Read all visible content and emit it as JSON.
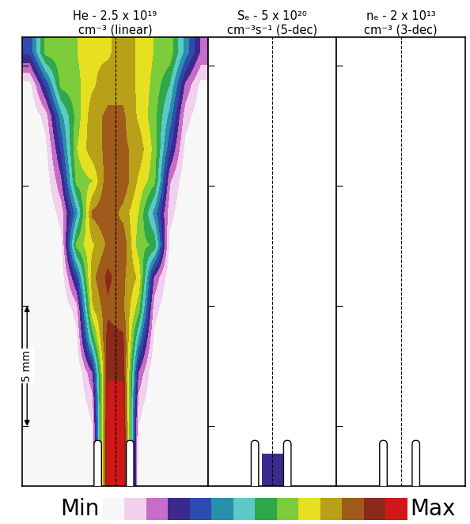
{
  "chart_data": [
    {
      "type": "heatmap",
      "title": "He - 2.5 x 10¹⁹\ncm⁻³ (linear)",
      "color_range": [
        0,
        2.5e+19
      ],
      "xlim": [
        -3.75,
        3.75
      ],
      "ylim": [
        0,
        18.7
      ],
      "xticks": [],
      "yticks": [
        2.5,
        7.5,
        12.5,
        17.5
      ],
      "tick_labels": false,
      "cells": [
        [
          0,
          0,
          0,
          0,
          5e+17,
          2.5e+19,
          2.5e+19,
          5e+17,
          0,
          0,
          0,
          0
        ],
        [
          0,
          0,
          0,
          0,
          1.2e+18,
          2.5e+19,
          2.5e+19,
          1.2e+18,
          0,
          0,
          0,
          0
        ],
        [
          0,
          0,
          0,
          0,
          2.5e+18,
          2.4e+19,
          2.4e+19,
          2.5e+18,
          0,
          0,
          0,
          0
        ],
        [
          0,
          0,
          0,
          0,
          5e+18,
          2.3e+19,
          2.3e+19,
          5e+18,
          0,
          0,
          0,
          0
        ],
        [
          0,
          0,
          0,
          1.2e+18,
          1.25e+19,
          2.25e+19,
          2.2e+19,
          1e+19,
          1.2e+18,
          0,
          0,
          0
        ],
        [
          0,
          0,
          0,
          2.5e+18,
          1.75e+19,
          2.1e+19,
          2e+19,
          1.5e+19,
          2.5e+18,
          0,
          0,
          0
        ],
        [
          0,
          0,
          5e+17,
          7.5e+18,
          1.9e+19,
          2.2e+19,
          2e+19,
          1.75e+19,
          5e+18,
          5e+17,
          0,
          0
        ],
        [
          0,
          0,
          1.2e+18,
          1.5e+19,
          1.75e+19,
          2e+19,
          2.1e+19,
          1.5e+19,
          1.4e+19,
          1.2e+18,
          0,
          0
        ],
        [
          0,
          0,
          2.5e+18,
          1e+19,
          2e+19,
          2.1e+19,
          1.9e+19,
          1.6e+19,
          1e+19,
          2.5e+18,
          0,
          0
        ],
        [
          0,
          5e+17,
          5e+18,
          1.5e+19,
          1.6e+19,
          2.1e+19,
          2.1e+19,
          1.75e+19,
          1.5e+19,
          3.8e+18,
          5e+17,
          0
        ],
        [
          0,
          1.2e+18,
          7.5e+18,
          1.6e+19,
          1.9e+19,
          2e+19,
          2e+19,
          1.9e+19,
          1.55e+19,
          7.5e+18,
          1.2e+18,
          0
        ],
        [
          0,
          2.5e+18,
          1e+19,
          1.5e+19,
          1.9e+19,
          2e+19,
          2e+19,
          1.75e+19,
          1.5e+19,
          1e+19,
          2.5e+18,
          5e+17
        ],
        [
          1.2e+18,
          7.5e+18,
          1.5e+19,
          1.55e+19,
          1.75e+19,
          1.9e+19,
          1.9e+19,
          1.75e+19,
          1.55e+19,
          1.25e+19,
          5e+18,
          1.2e+18
        ],
        [
          7.5e+18,
          1.5e+19,
          1.55e+19,
          1.6e+19,
          1.75e+19,
          1.75e+19,
          1.9e+19,
          1.75e+19,
          1.6e+19,
          1.55e+19,
          1e+19,
          5e+18
        ]
      ]
    },
    {
      "type": "heatmap",
      "title": "Sₑ - 5 x 10²⁰\ncm⁻³s⁻¹ (5-dec)",
      "log": true,
      "color_range": [
        5000000000000000.0,
        5e+20
      ],
      "xlim": [
        -2.57,
        2.57
      ],
      "ylim": [
        0,
        18.7
      ],
      "xticks": [],
      "yticks": [
        2.5,
        7.5,
        12.5,
        17.5
      ],
      "tick_labels": false,
      "cells": [
        [
          0,
          0,
          0,
          0,
          0,
          1e+17,
          1e+17,
          0,
          0,
          0,
          0,
          0
        ],
        [
          0,
          0,
          0,
          0,
          0,
          0,
          0,
          0,
          0,
          0,
          0,
          0
        ],
        [
          0,
          0,
          0,
          0,
          0,
          0,
          0,
          0,
          0,
          0,
          0,
          0
        ],
        [
          0,
          0,
          0,
          0,
          0,
          0,
          0,
          0,
          0,
          0,
          0,
          0
        ],
        [
          0,
          0,
          0,
          0,
          0,
          0,
          0,
          0,
          0,
          0,
          0,
          0
        ],
        [
          0,
          0,
          0,
          0,
          0,
          0,
          0,
          0,
          0,
          0,
          0,
          0
        ],
        [
          0,
          0,
          0,
          0,
          0,
          0,
          0,
          0,
          0,
          0,
          0,
          0
        ],
        [
          0,
          0,
          0,
          0,
          0,
          0,
          0,
          0,
          0,
          0,
          0,
          0
        ],
        [
          0,
          0,
          0,
          0,
          0,
          0,
          0,
          0,
          0,
          0,
          0,
          0
        ],
        [
          0,
          0,
          0,
          0,
          0,
          0,
          0,
          0,
          0,
          0,
          0,
          0
        ],
        [
          0,
          0,
          0,
          0,
          0,
          0,
          0,
          0,
          0,
          0,
          0,
          0
        ],
        [
          0,
          0,
          0,
          0,
          0,
          0,
          0,
          0,
          0,
          0,
          0,
          0
        ],
        [
          0,
          0,
          0,
          0,
          0,
          0,
          0,
          0,
          0,
          0,
          0,
          0
        ],
        [
          0,
          0,
          0,
          0,
          0,
          0,
          0,
          0,
          0,
          0,
          0,
          0
        ]
      ]
    },
    {
      "type": "heatmap",
      "title": "nₑ - 2 x 10¹³\ncm⁻³ (3-dec)",
      "log": true,
      "color_range": [
        20000000000.0,
        20000000000000.0
      ],
      "xlim": [
        -2.57,
        2.57
      ],
      "ylim": [
        0,
        18.7
      ],
      "xticks": [],
      "yticks": [
        2.5,
        7.5,
        12.5,
        17.5
      ],
      "tick_labels": false,
      "cells": [
        [
          0,
          0,
          0,
          0,
          0,
          0,
          0,
          0,
          0,
          0,
          0,
          0
        ],
        [
          0,
          0,
          0,
          0,
          0,
          0,
          0,
          0,
          0,
          0,
          0,
          0
        ],
        [
          0,
          0,
          0,
          0,
          0,
          0,
          0,
          0,
          0,
          0,
          0,
          0
        ],
        [
          0,
          0,
          0,
          0,
          0,
          0,
          0,
          0,
          0,
          0,
          0,
          0
        ],
        [
          0,
          0,
          0,
          0,
          0,
          0,
          0,
          0,
          0,
          0,
          0,
          0
        ],
        [
          0,
          0,
          0,
          0,
          0,
          0,
          0,
          0,
          0,
          0,
          0,
          0
        ],
        [
          0,
          0,
          0,
          0,
          0,
          0,
          0,
          0,
          0,
          0,
          0,
          0
        ],
        [
          0,
          0,
          0,
          0,
          0,
          0,
          0,
          0,
          0,
          0,
          0,
          0
        ],
        [
          0,
          0,
          0,
          0,
          0,
          0,
          0,
          0,
          0,
          0,
          0,
          0
        ],
        [
          0,
          0,
          0,
          0,
          0,
          0,
          0,
          0,
          0,
          0,
          0,
          0
        ],
        [
          0,
          0,
          0,
          0,
          0,
          0,
          0,
          0,
          0,
          0,
          0,
          0
        ],
        [
          0,
          0,
          0,
          0,
          0,
          0,
          0,
          0,
          0,
          0,
          0,
          0
        ],
        [
          0,
          0,
          0,
          0,
          0,
          0,
          0,
          0,
          0,
          0,
          0,
          0
        ],
        [
          0,
          0,
          0,
          0,
          0,
          0,
          0,
          0,
          0,
          0,
          0,
          0
        ]
      ]
    }
  ],
  "colorbar": {
    "labels": [
      "Min",
      "Max"
    ]
  },
  "scale_bar": {
    "label": "5 mm",
    "length": 5
  }
}
